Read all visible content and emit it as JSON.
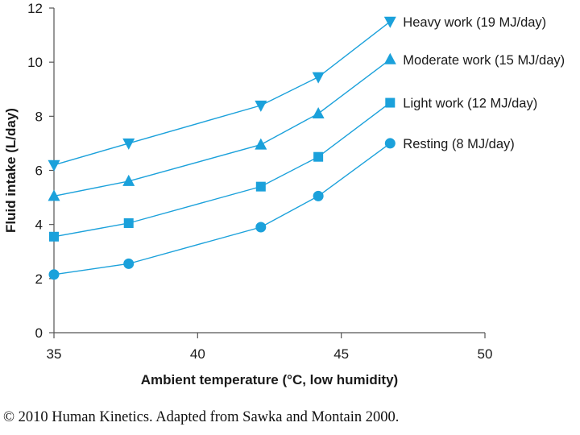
{
  "chart_data": {
    "type": "line",
    "title": "",
    "xlabel": "Ambient temperature (°C, low humidity)",
    "ylabel": "Fluid intake (L/day)",
    "xlim": [
      35,
      50
    ],
    "ylim": [
      0,
      12
    ],
    "xticks": [
      35,
      40,
      45,
      50
    ],
    "yticks": [
      0,
      2,
      4,
      6,
      8,
      10,
      12
    ],
    "grid": false,
    "legend": "top-right, labels beside series ends",
    "marker_color": "#1ba1db",
    "line_color": "#1ba1db",
    "x": [
      35,
      37.6,
      42.2,
      44.2,
      46.7
    ],
    "series": [
      {
        "name": "Heavy work (19 MJ/day)",
        "marker": "triangle-down",
        "values": [
          6.2,
          7.0,
          8.4,
          9.45,
          11.5
        ]
      },
      {
        "name": "Moderate work (15 MJ/day)",
        "marker": "triangle-up",
        "values": [
          5.05,
          5.6,
          6.95,
          8.1,
          10.1
        ]
      },
      {
        "name": "Light work (12 MJ/day)",
        "marker": "square",
        "values": [
          3.55,
          4.05,
          5.4,
          6.5,
          8.5
        ]
      },
      {
        "name": "Resting (8 MJ/day)",
        "marker": "circle",
        "values": [
          2.15,
          2.55,
          3.9,
          5.05,
          7.0
        ]
      }
    ]
  },
  "footer": {
    "text": "© 2010 Human Kinetics. Adapted from Sawka and Montain 2000."
  }
}
